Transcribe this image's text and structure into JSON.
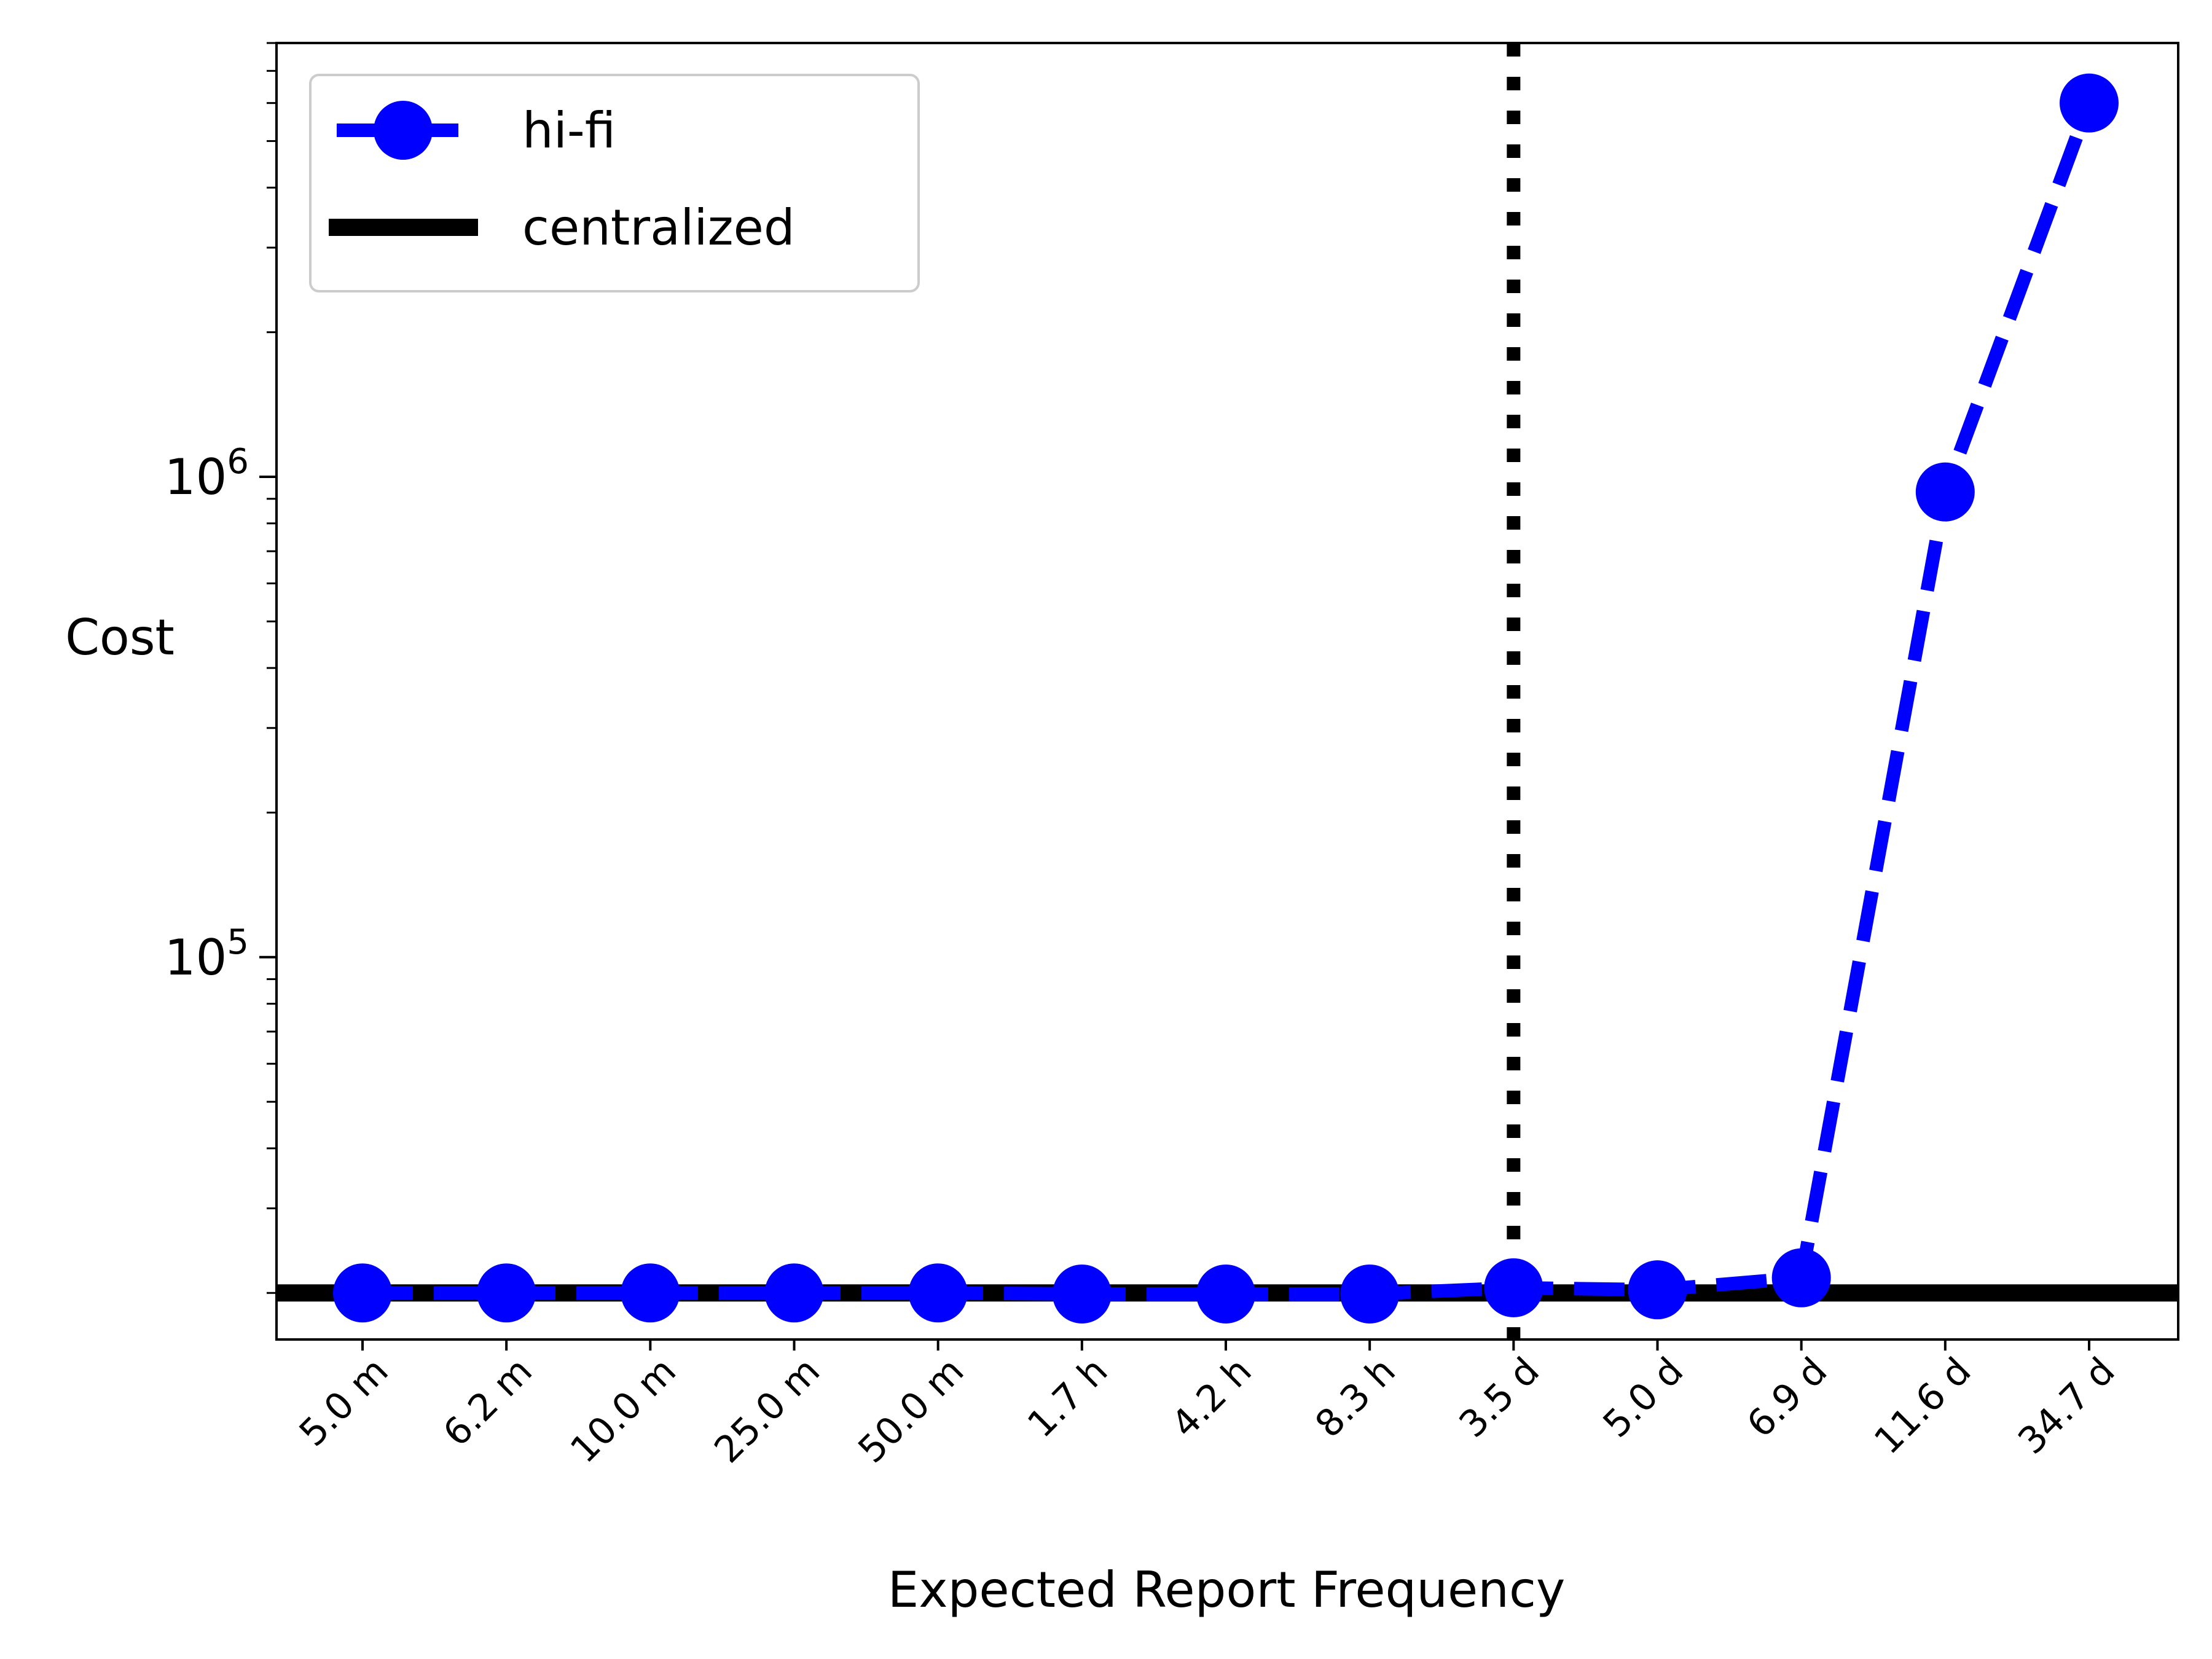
{
  "chart_data": {
    "type": "line",
    "title": "",
    "xlabel": "Expected Report Frequency",
    "ylabel": "Cost",
    "yscale": "log",
    "ylim": [
      16000,
      8000000
    ],
    "y_major_ticks": [
      {
        "value": 100000,
        "base": "10",
        "exp": "5"
      },
      {
        "value": 1000000,
        "base": "10",
        "exp": "6"
      }
    ],
    "categories": [
      "5.0 m",
      "6.2 m",
      "10.0 m",
      "25.0 m",
      "50.0 m",
      "1.7 h",
      "4.2 h",
      "8.3 h",
      "3.5 d",
      "5.0 d",
      "6.9 d",
      "11.6 d",
      "34.7 d"
    ],
    "series": [
      {
        "name": "hi-fi",
        "color": "#0000ff",
        "style": "dashed",
        "marker": "circle",
        "values": [
          20000,
          20000,
          20000,
          20000,
          20000,
          19900,
          19900,
          19900,
          20500,
          20300,
          21500,
          930000,
          6000000
        ]
      }
    ],
    "reference_lines": [
      {
        "name": "centralized",
        "orientation": "horizontal",
        "value": 20000,
        "color": "#000000",
        "style": "solid"
      },
      {
        "name": "",
        "orientation": "vertical",
        "category": "3.5 d",
        "color": "#000000",
        "style": "dotted"
      }
    ],
    "legend": {
      "position": "top-left",
      "entries": [
        "hi-fi",
        "centralized"
      ]
    },
    "grid": false
  }
}
